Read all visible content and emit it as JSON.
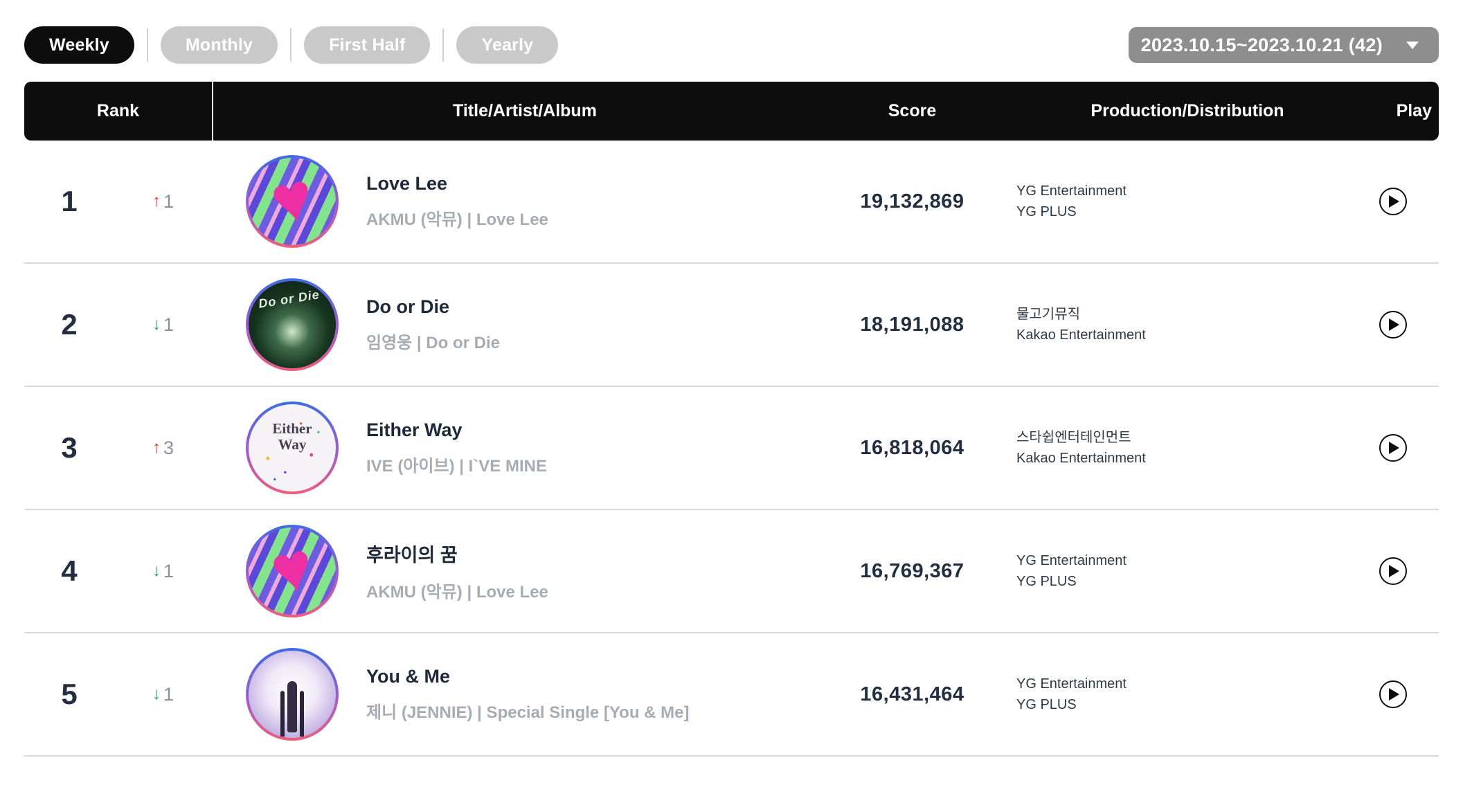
{
  "tabs": [
    {
      "label": "Weekly",
      "active": true
    },
    {
      "label": "Monthly",
      "active": false
    },
    {
      "label": "First Half",
      "active": false
    },
    {
      "label": "Yearly",
      "active": false
    }
  ],
  "period_selector": {
    "label": "2023.10.15~2023.10.21 (42)"
  },
  "icons": {
    "up_arrow": "↑",
    "down_arrow": "↓"
  },
  "colors": {
    "rank_up": "#e03131",
    "rank_down": "#18a34f",
    "tab_active_bg": "#0d0d0d",
    "tab_inactive_bg": "#c9c9c9",
    "header_bg": "#0d0d0d",
    "period_bg": "#8e8e8e"
  },
  "table": {
    "headers": {
      "rank": "Rank",
      "title": "Title/Artist/Album",
      "score": "Score",
      "production": "Production/Distribution",
      "play": "Play"
    },
    "rows": [
      {
        "rank": "1",
        "change_dir": "up",
        "change_amount": "1",
        "title": "Love Lee",
        "artist_album": "AKMU (악뮤) | Love Lee",
        "score": "19,132,869",
        "production": [
          "YG Entertainment",
          "YG PLUS"
        ],
        "album_art": "akmu-love-lee"
      },
      {
        "rank": "2",
        "change_dir": "down",
        "change_amount": "1",
        "title": "Do or Die",
        "artist_album": "임영웅 | Do or Die",
        "score": "18,191,088",
        "production": [
          "물고기뮤직",
          "Kakao Entertainment"
        ],
        "album_art": "lim-young-woong-do-or-die"
      },
      {
        "rank": "3",
        "change_dir": "up",
        "change_amount": "3",
        "title": "Either Way",
        "artist_album": "IVE (아이브) | I`VE MINE",
        "score": "16,818,064",
        "production": [
          "스타쉽엔터테인먼트",
          "Kakao Entertainment"
        ],
        "album_art": "ive-either-way"
      },
      {
        "rank": "4",
        "change_dir": "down",
        "change_amount": "1",
        "title": "후라이의 꿈",
        "artist_album": "AKMU (악뮤) | Love Lee",
        "score": "16,769,367",
        "production": [
          "YG Entertainment",
          "YG PLUS"
        ],
        "album_art": "akmu-love-lee"
      },
      {
        "rank": "5",
        "change_dir": "down",
        "change_amount": "1",
        "title": "You & Me",
        "artist_album": "제니 (JENNIE) | Special Single [You & Me]",
        "score": "16,431,464",
        "production": [
          "YG Entertainment",
          "YG PLUS"
        ],
        "album_art": "jennie-you-and-me"
      }
    ]
  }
}
